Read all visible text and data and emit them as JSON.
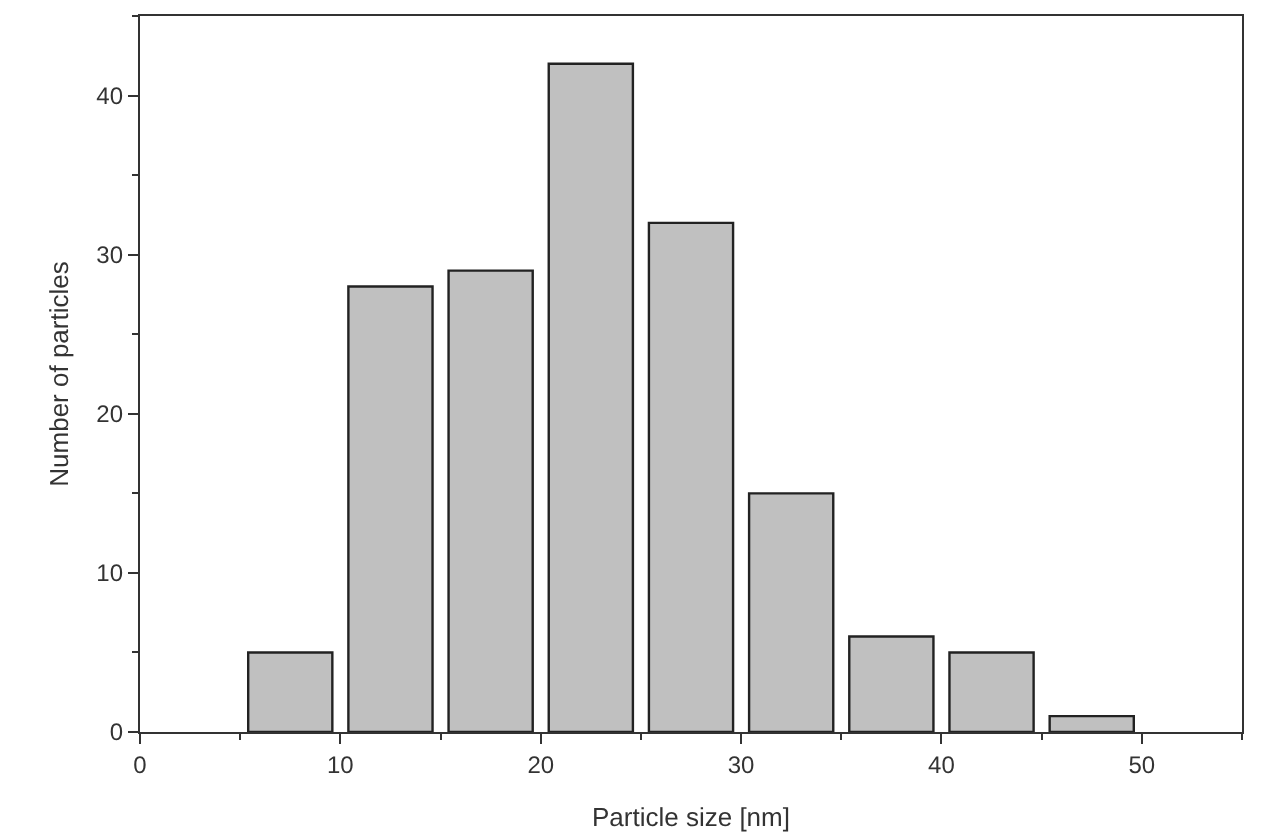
{
  "chart_data": {
    "type": "histogram",
    "xlabel": "Particle size [nm]",
    "ylabel": "Number of particles",
    "bins": [
      5,
      10,
      15,
      20,
      25,
      30,
      35,
      40,
      45,
      50
    ],
    "values": [
      5,
      28,
      29,
      42,
      32,
      15,
      6,
      5,
      1
    ],
    "color": "#c0c0c0",
    "xlim": [
      0,
      55
    ],
    "xticks": [
      0,
      10,
      20,
      30,
      40,
      50
    ],
    "ylim": [
      0,
      45
    ],
    "yticks": [
      0,
      10,
      20,
      30,
      40
    ],
    "grid": false,
    "legend": false
  }
}
